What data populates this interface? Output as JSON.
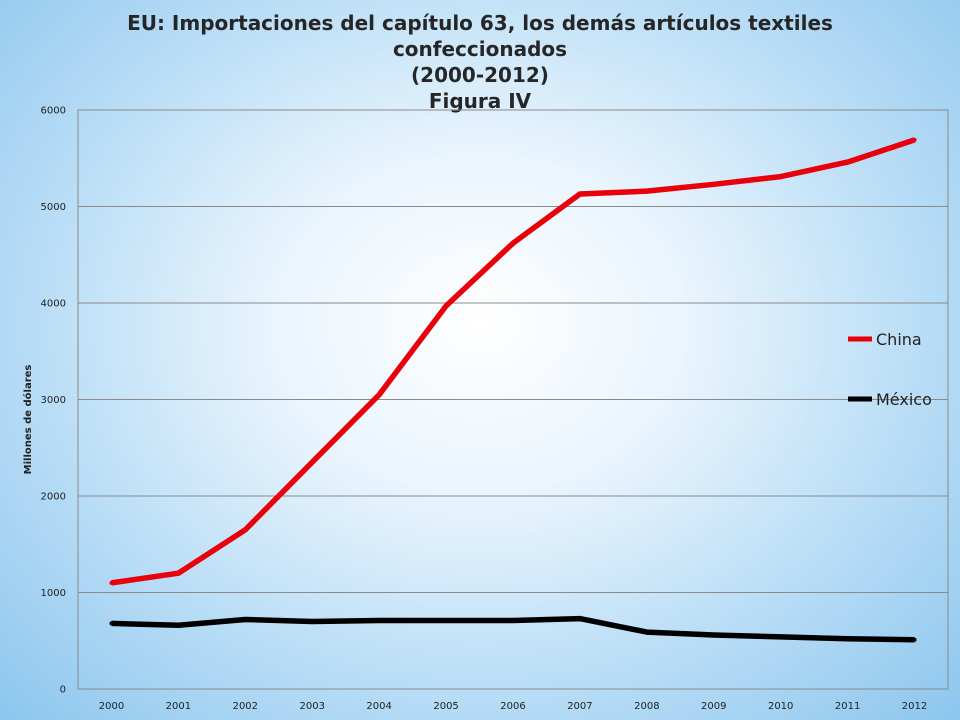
{
  "chart_data": {
    "type": "line",
    "title": "EU: Importaciones del capítulo 63, los demás artículos textiles confeccionados",
    "title_lines": [
      "EU: Importaciones del capítulo 63, los demás artículos textiles",
      "confeccionados",
      "(2000-2012)",
      "Figura IV"
    ],
    "xlabel": "",
    "ylabel": "Millones de dólares",
    "categories": [
      "2000",
      "2001",
      "2002",
      "2003",
      "2004",
      "2005",
      "2006",
      "2007",
      "2008",
      "2009",
      "2010",
      "2011",
      "2012"
    ],
    "y_ticks": [
      "0",
      "1000",
      "2000",
      "3000",
      "4000",
      "5000",
      "6000"
    ],
    "ylim": [
      0,
      6000
    ],
    "grid": true,
    "legend_position": "right",
    "series": [
      {
        "name": "China",
        "color": "#e8000b",
        "values": [
          1100,
          1200,
          1650,
          2350,
          3050,
          3970,
          4620,
          5130,
          5160,
          5230,
          5310,
          5460,
          5690
        ]
      },
      {
        "name": "México",
        "color": "#000000",
        "values": [
          680,
          660,
          720,
          700,
          710,
          710,
          710,
          730,
          590,
          560,
          540,
          520,
          510
        ]
      }
    ]
  }
}
